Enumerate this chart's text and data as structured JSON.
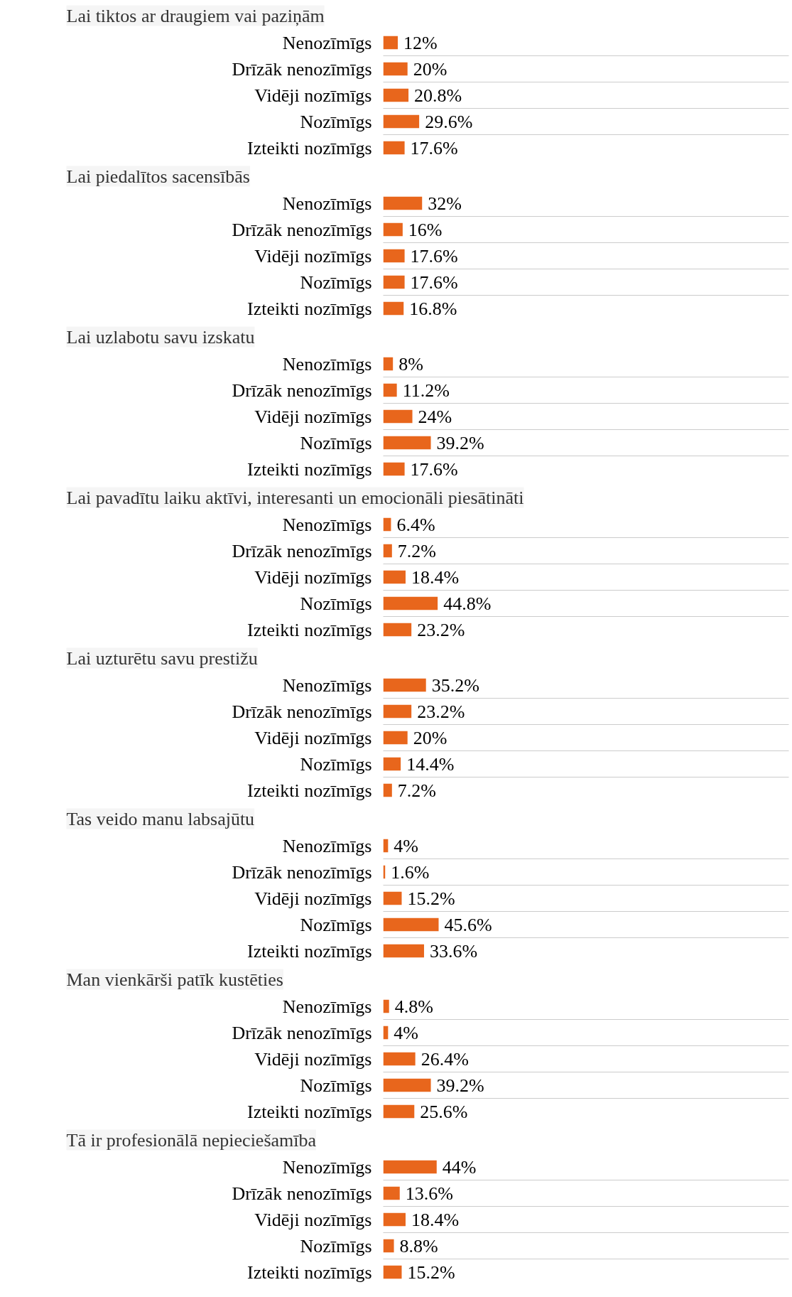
{
  "chart_data": [
    {
      "type": "bar",
      "orientation": "horizontal",
      "title": "Lai tiktos ar draugiem vai paziņām",
      "categories": [
        "Nenozīmīgs",
        "Drīzāk nenozīmīgs",
        "Vidēji nozīmīgs",
        "Nozīmīgs",
        "Izteikti nozīmīgs"
      ],
      "values": [
        12,
        20,
        20.8,
        29.6,
        17.6
      ],
      "value_labels": [
        "12%",
        "20%",
        "20.8%",
        "29.6%",
        "17.6%"
      ],
      "color": "#e8661c",
      "grid": "y",
      "tick_labels": "y"
    },
    {
      "type": "bar",
      "orientation": "horizontal",
      "title": "Lai piedalītos sacensībās",
      "categories": [
        "Nenozīmīgs",
        "Drīzāk nenozīmīgs",
        "Vidēji nozīmīgs",
        "Nozīmīgs",
        "Izteikti nozīmīgs"
      ],
      "values": [
        32,
        16,
        17.6,
        17.6,
        16.8
      ],
      "value_labels": [
        "32%",
        "16%",
        "17.6%",
        "17.6%",
        "16.8%"
      ],
      "color": "#e8661c",
      "grid": "y",
      "tick_labels": "y"
    },
    {
      "type": "bar",
      "orientation": "horizontal",
      "title": "Lai uzlabotu savu izskatu",
      "categories": [
        "Nenozīmīgs",
        "Drīzāk nenozīmīgs",
        "Vidēji nozīmīgs",
        "Nozīmīgs",
        "Izteikti nozīmīgs"
      ],
      "values": [
        8,
        11.2,
        24,
        39.2,
        17.6
      ],
      "value_labels": [
        "8%",
        "11.2%",
        "24%",
        "39.2%",
        "17.6%"
      ],
      "color": "#e8661c",
      "grid": "y",
      "tick_labels": "y"
    },
    {
      "type": "bar",
      "orientation": "horizontal",
      "title": "Lai pavadītu laiku aktīvi, interesanti un emocionāli piesātināti",
      "categories": [
        "Nenozīmīgs",
        "Drīzāk nenozīmīgs",
        "Vidēji nozīmīgs",
        "Nozīmīgs",
        "Izteikti nozīmīgs"
      ],
      "values": [
        6.4,
        7.2,
        18.4,
        44.8,
        23.2
      ],
      "value_labels": [
        "6.4%",
        "7.2%",
        "18.4%",
        "44.8%",
        "23.2%"
      ],
      "color": "#e8661c",
      "grid": "y",
      "tick_labels": "y"
    },
    {
      "type": "bar",
      "orientation": "horizontal",
      "title": "Lai uzturētu savu prestižu",
      "categories": [
        "Nenozīmīgs",
        "Drīzāk nenozīmīgs",
        "Vidēji nozīmīgs",
        "Nozīmīgs",
        "Izteikti nozīmīgs"
      ],
      "values": [
        35.2,
        23.2,
        20,
        14.4,
        7.2
      ],
      "value_labels": [
        "35.2%",
        "23.2%",
        "20%",
        "14.4%",
        "7.2%"
      ],
      "color": "#e8661c",
      "grid": "y",
      "tick_labels": "y"
    },
    {
      "type": "bar",
      "orientation": "horizontal",
      "title": "Tas veido manu labsajūtu",
      "categories": [
        "Nenozīmīgs",
        "Drīzāk nenozīmīgs",
        "Vidēji nozīmīgs",
        "Nozīmīgs",
        "Izteikti nozīmīgs"
      ],
      "values": [
        4,
        1.6,
        15.2,
        45.6,
        33.6
      ],
      "value_labels": [
        "4%",
        "1.6%",
        "15.2%",
        "45.6%",
        "33.6%"
      ],
      "color": "#e8661c",
      "grid": "y",
      "tick_labels": "y"
    },
    {
      "type": "bar",
      "orientation": "horizontal",
      "title": "Man vienkārši patīk kustēties",
      "categories": [
        "Nenozīmīgs",
        "Drīzāk nenozīmīgs",
        "Vidēji nozīmīgs",
        "Nozīmīgs",
        "Izteikti nozīmīgs"
      ],
      "values": [
        4.8,
        4,
        26.4,
        39.2,
        25.6
      ],
      "value_labels": [
        "4.8%",
        "4%",
        "26.4%",
        "39.2%",
        "25.6%"
      ],
      "color": "#e8661c",
      "grid": "y",
      "tick_labels": "y"
    },
    {
      "type": "bar",
      "orientation": "horizontal",
      "title": "Tā ir profesionālā nepieciešamība",
      "categories": [
        "Nenozīmīgs",
        "Drīzāk nenozīmīgs",
        "Vidēji nozīmīgs",
        "Nozīmīgs",
        "Izteikti nozīmīgs"
      ],
      "values": [
        44,
        13.6,
        18.4,
        8.8,
        15.2
      ],
      "value_labels": [
        "44%",
        "13.6%",
        "18.4%",
        "8.8%",
        "15.2%"
      ],
      "color": "#e8661c",
      "grid": "y",
      "tick_labels": "y"
    }
  ]
}
